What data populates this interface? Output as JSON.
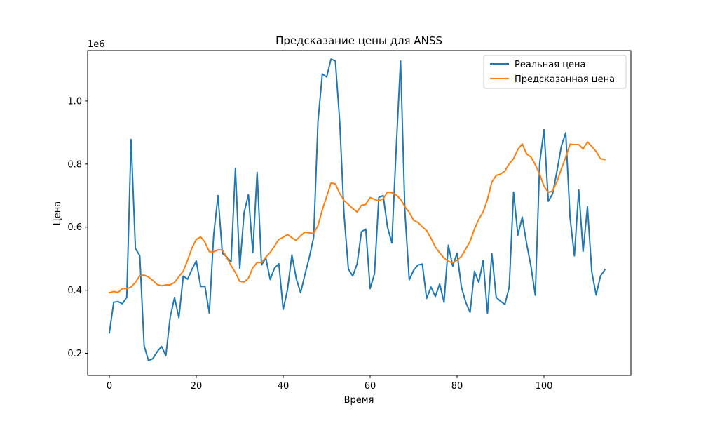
{
  "chart_data": {
    "type": "line",
    "title": "Предсказание цены для ANSS",
    "xlabel": "Время",
    "ylabel": "Цена",
    "y_scale_label": "1e6",
    "xlim": [
      -5,
      120
    ],
    "ylim": [
      0.13,
      1.16
    ],
    "x_ticks": [
      0,
      20,
      40,
      60,
      80,
      100
    ],
    "y_ticks": [
      0.2,
      0.4,
      0.6,
      0.8,
      1.0
    ],
    "x_tick_labels": [
      "0",
      "20",
      "40",
      "60",
      "80",
      "100"
    ],
    "y_tick_labels": [
      "0.2",
      "0.4",
      "0.6",
      "0.8",
      "1.0"
    ],
    "grid": false,
    "legend_position": "top-right",
    "series": [
      {
        "name": "Реальная цена",
        "color": "#1f77b4",
        "values": [
          0.265,
          0.362,
          0.364,
          0.357,
          0.378,
          0.878,
          0.532,
          0.51,
          0.224,
          0.177,
          0.183,
          0.205,
          0.222,
          0.193,
          0.315,
          0.377,
          0.313,
          0.445,
          0.435,
          0.466,
          0.493,
          0.412,
          0.412,
          0.327,
          0.575,
          0.7,
          0.517,
          0.506,
          0.49,
          0.786,
          0.47,
          0.646,
          0.703,
          0.519,
          0.774,
          0.48,
          0.502,
          0.434,
          0.47,
          0.484,
          0.339,
          0.403,
          0.512,
          0.437,
          0.392,
          0.45,
          0.504,
          0.567,
          0.935,
          1.086,
          1.076,
          1.133,
          1.127,
          0.935,
          0.64,
          0.467,
          0.445,
          0.483,
          0.585,
          0.594,
          0.405,
          0.452,
          0.694,
          0.7,
          0.6,
          0.55,
          0.85,
          1.127,
          0.65,
          0.433,
          0.463,
          0.48,
          0.483,
          0.374,
          0.41,
          0.38,
          0.42,
          0.362,
          0.543,
          0.476,
          0.518,
          0.41,
          0.362,
          0.33,
          0.46,
          0.425,
          0.494,
          0.326,
          0.517,
          0.378,
          0.365,
          0.355,
          0.41,
          0.711,
          0.575,
          0.632,
          0.548,
          0.476,
          0.384,
          0.802,
          0.909,
          0.682,
          0.706,
          0.779,
          0.857,
          0.899,
          0.63,
          0.509,
          0.718,
          0.523,
          0.665,
          0.458,
          0.385,
          0.445,
          0.465
        ]
      },
      {
        "name": "Предсказанная цена",
        "color": "#ff7f0e",
        "values": [
          0.392,
          0.396,
          0.393,
          0.405,
          0.405,
          0.41,
          0.425,
          0.446,
          0.448,
          0.442,
          0.431,
          0.418,
          0.414,
          0.417,
          0.417,
          0.425,
          0.443,
          0.46,
          0.495,
          0.534,
          0.561,
          0.569,
          0.552,
          0.522,
          0.522,
          0.528,
          0.528,
          0.504,
          0.478,
          0.456,
          0.428,
          0.426,
          0.438,
          0.471,
          0.488,
          0.488,
          0.505,
          0.52,
          0.54,
          0.561,
          0.568,
          0.577,
          0.566,
          0.558,
          0.573,
          0.584,
          0.582,
          0.58,
          0.605,
          0.655,
          0.697,
          0.74,
          0.737,
          0.707,
          0.684,
          0.672,
          0.659,
          0.648,
          0.669,
          0.672,
          0.694,
          0.688,
          0.683,
          0.69,
          0.711,
          0.709,
          0.702,
          0.688,
          0.665,
          0.647,
          0.622,
          0.615,
          0.601,
          0.589,
          0.565,
          0.537,
          0.519,
          0.502,
          0.492,
          0.487,
          0.495,
          0.507,
          0.531,
          0.555,
          0.594,
          0.625,
          0.648,
          0.688,
          0.743,
          0.764,
          0.768,
          0.778,
          0.801,
          0.817,
          0.847,
          0.864,
          0.832,
          0.822,
          0.798,
          0.768,
          0.73,
          0.71,
          0.715,
          0.745,
          0.785,
          0.822,
          0.863,
          0.862,
          0.862,
          0.848,
          0.87,
          0.856,
          0.84,
          0.817,
          0.814
        ]
      }
    ]
  }
}
